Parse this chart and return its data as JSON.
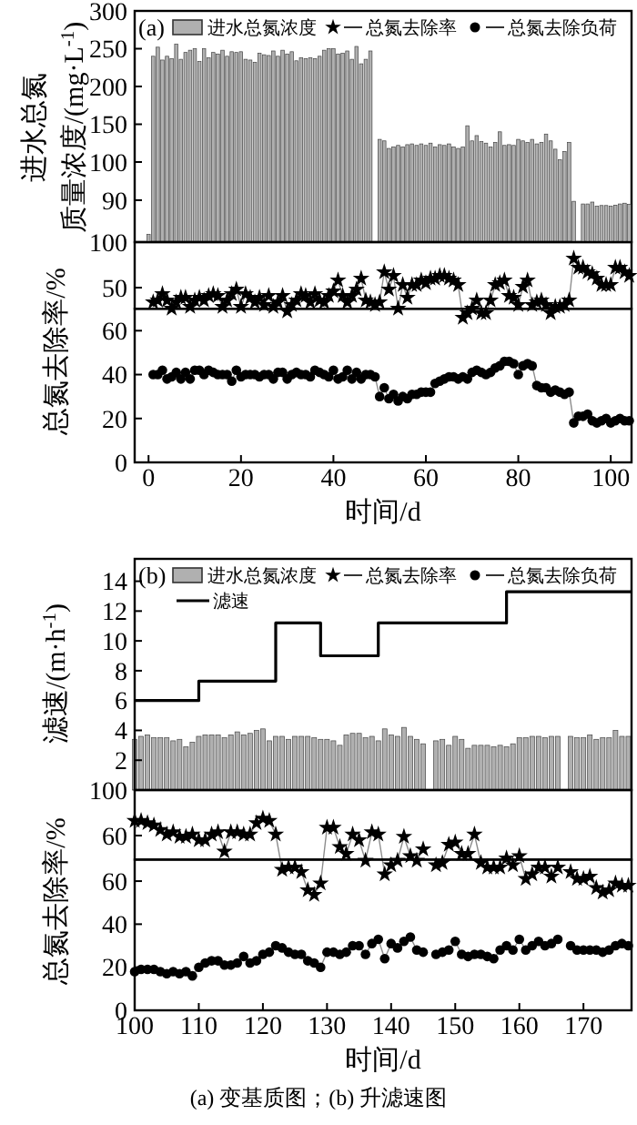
{
  "chart_data": [
    {
      "type": "bar",
      "annotations": [
        "(a)"
      ],
      "ylabel": "进水总氮质量浓度/(mg·L$^{-1}$)",
      "xlim": [
        -3,
        104.5
      ],
      "ylim": [
        -6,
        300
      ],
      "yticks": [
        {
          "value": 100,
          "label": null
        },
        150,
        200,
        250,
        300
      ],
      "tick_labels": "y",
      "legend": "top left",
      "x": [
        1,
        2,
        3,
        4,
        5,
        6,
        7,
        8,
        9,
        10,
        11,
        12,
        13,
        14,
        15,
        16,
        17,
        18,
        19,
        20,
        21,
        22,
        23,
        24,
        25,
        26,
        27,
        28,
        29,
        30,
        31,
        32,
        33,
        34,
        35,
        36,
        37,
        38,
        39,
        40,
        41,
        42,
        43,
        44,
        45,
        46,
        47,
        48,
        49,
        50,
        51,
        52,
        53,
        54,
        55,
        56,
        57,
        58,
        59,
        60,
        61,
        62,
        63,
        64,
        65,
        66,
        67,
        68,
        69,
        70,
        71,
        72,
        73,
        74,
        75,
        76,
        77,
        78,
        79,
        80,
        81,
        82,
        83,
        84,
        85,
        86,
        87,
        88,
        89,
        90,
        91
      ],
      "series": [
        {
          "name": "进水总氮浓度",
          "color": "#b0b0b0",
          "values": [
            240,
            252,
            235,
            240,
            237,
            256,
            236,
            245,
            248,
            250,
            233,
            250,
            238,
            245,
            243,
            248,
            240,
            246,
            245,
            246,
            236,
            235,
            232,
            244,
            242,
            241,
            247,
            240,
            248,
            243,
            246,
            234,
            238,
            237,
            238,
            237,
            240,
            248,
            250,
            250,
            243,
            244,
            247,
            236,
            253,
            230,
            236,
            247,
            null,
            130,
            128,
            118,
            120,
            122,
            120,
            123,
            124,
            122,
            124,
            122,
            125,
            120,
            123,
            122,
            124,
            120,
            118,
            120,
            148,
            128,
            135,
            127,
            125,
            120,
            126,
            140,
            122,
            123,
            122,
            130,
            128,
            126,
            130,
            124,
            126,
            137,
            128,
            117,
            103,
            114,
            126
          ]
        }
      ]
    },
    {
      "type": "bar",
      "xlim": [
        -3,
        104.5
      ],
      "ylim": [
        79,
        100
      ],
      "yticks": [
        90,
        100
      ],
      "tick_labels": "y",
      "x": [
        0,
        92,
        94,
        95,
        96,
        97,
        98,
        99,
        100,
        101,
        102,
        103,
        104
      ],
      "series": [
        {
          "color": "#b0b0b0",
          "values": [
            81,
            89.7,
            89,
            89,
            89.5,
            88.4,
            88.6,
            88.6,
            88.4,
            88.7,
            89,
            89.2,
            88.9
          ]
        }
      ]
    },
    {
      "type": "line",
      "xlim": [
        -3,
        104.5
      ],
      "ylim": [
        -142,
        100
      ],
      "yticks": [
        50,
        100
      ],
      "tick_labels": "y",
      "marker": "star",
      "legend": "top",
      "x": [
        1,
        2,
        3,
        4,
        5,
        6,
        7,
        8,
        9,
        10,
        11,
        12,
        13,
        14,
        15,
        16,
        17,
        18,
        19,
        20,
        21,
        22,
        23,
        24,
        25,
        26,
        27,
        28,
        29,
        30,
        31,
        32,
        33,
        34,
        35,
        36,
        37,
        38,
        39,
        40,
        41,
        42,
        43,
        44,
        45,
        46,
        47,
        48,
        49,
        50,
        51,
        52,
        53,
        54,
        55,
        56,
        57,
        58,
        59,
        60,
        61,
        62,
        63,
        64,
        65,
        66,
        67,
        68,
        69,
        70,
        71,
        72,
        73,
        74,
        75,
        76,
        77,
        78,
        79,
        80,
        81,
        82,
        83,
        84,
        85,
        86,
        87,
        88,
        89,
        90,
        91,
        92,
        93,
        94,
        95,
        96,
        97,
        98,
        99,
        100,
        101,
        102,
        103,
        104
      ],
      "series": [
        {
          "name": "总氮去除率",
          "color": "#000000",
          "values": [
            34,
            36,
            43,
            36,
            27,
            34,
            39,
            39,
            29,
            36,
            39,
            36,
            41,
            43,
            41,
            29,
            36,
            43,
            48,
            29,
            43,
            39,
            34,
            39,
            31,
            41,
            29,
            34,
            41,
            24,
            31,
            36,
            43,
            41,
            34,
            43,
            36,
            34,
            41,
            46,
            58,
            41,
            34,
            41,
            48,
            60,
            36,
            34,
            31,
            34,
            67,
            48,
            63,
            27,
            53,
            39,
            53,
            53,
            58,
            55,
            60,
            60,
            63,
            63,
            60,
            58,
            53,
            17,
            22,
            27,
            36,
            22,
            22,
            36,
            53,
            55,
            58,
            41,
            39,
            31,
            51,
            58,
            31,
            34,
            36,
            31,
            22,
            29,
            29,
            31,
            36,
            82,
            72,
            72,
            67,
            65,
            60,
            53,
            53,
            53,
            72,
            72,
            67,
            63
          ]
        }
      ]
    },
    {
      "type": "line",
      "xlabel": "时间/d",
      "ylabel": "总氮去除率/%",
      "xlim": [
        -3,
        104.5
      ],
      "xticks": [
        0,
        20,
        40,
        60,
        80,
        100
      ],
      "ylim": [
        0,
        70
      ],
      "yticks": [
        0,
        20,
        40,
        60
      ],
      "marker": "circle",
      "legend": "top",
      "x": [
        1,
        2,
        3,
        4,
        5,
        6,
        7,
        8,
        9,
        10,
        11,
        12,
        13,
        14,
        15,
        16,
        17,
        18,
        19,
        20,
        21,
        22,
        23,
        24,
        25,
        26,
        27,
        28,
        29,
        30,
        31,
        32,
        33,
        34,
        35,
        36,
        37,
        38,
        39,
        40,
        41,
        42,
        43,
        44,
        45,
        46,
        47,
        48,
        49,
        50,
        51,
        52,
        53,
        54,
        55,
        56,
        57,
        58,
        59,
        60,
        61,
        62,
        63,
        64,
        65,
        66,
        67,
        68,
        69,
        70,
        71,
        72,
        73,
        74,
        75,
        76,
        77,
        78,
        79,
        80,
        81,
        82,
        83,
        84,
        85,
        86,
        87,
        88,
        89,
        90,
        91,
        92,
        93,
        94,
        95,
        96,
        97,
        98,
        99,
        100,
        101,
        102,
        103,
        104
      ],
      "series": [
        {
          "name": "总氮去除负荷",
          "color": "#000000",
          "values": [
            40,
            40,
            42,
            38,
            39,
            41,
            38,
            41,
            38,
            42,
            42,
            40,
            42,
            41,
            40,
            40,
            40,
            37,
            42,
            39,
            40,
            40,
            40,
            39,
            40,
            40,
            38,
            41,
            41,
            38,
            40,
            41,
            40,
            40,
            39,
            42,
            41,
            40,
            39,
            42,
            38,
            39,
            42,
            38,
            41,
            38,
            40,
            40,
            39,
            30,
            34,
            29,
            31,
            28,
            30,
            29,
            31,
            31,
            32,
            32,
            32,
            36,
            37,
            38,
            39,
            39,
            38,
            39,
            38,
            41,
            42,
            41,
            40,
            41,
            43,
            44,
            46,
            46,
            45,
            40,
            44,
            45,
            44,
            35,
            34,
            34,
            32,
            33,
            32,
            31,
            32,
            18,
            21,
            21,
            22,
            19,
            18,
            19,
            20,
            18,
            19,
            20,
            19,
            19
          ]
        }
      ]
    },
    {
      "type": "bar",
      "annotations": [
        "(b)"
      ],
      "ylabel": "滤速/(m·h$^{-1}$)",
      "xlim": [
        100,
        177.5
      ],
      "ylim": [
        0,
        15.5
      ],
      "yticks": [
        2,
        4,
        6,
        8,
        10,
        12,
        14
      ],
      "tick_labels": "y",
      "legend": "top left",
      "x": [
        100,
        101,
        102,
        103,
        104,
        105,
        106,
        107,
        108,
        109,
        110,
        111,
        112,
        113,
        114,
        115,
        116,
        117,
        118,
        119,
        120,
        121,
        122,
        123,
        124,
        125,
        126,
        127,
        128,
        129,
        130,
        131,
        132,
        133,
        134,
        135,
        136,
        137,
        138,
        139,
        140,
        141,
        142,
        143,
        144,
        145,
        146,
        147,
        148,
        149,
        150,
        151,
        152,
        153,
        154,
        155,
        156,
        157,
        158,
        159,
        160,
        161,
        162,
        163,
        164,
        165,
        166,
        167,
        168,
        169,
        170,
        171,
        172,
        173,
        174,
        175,
        176,
        177
      ],
      "series": [
        {
          "name": "进水总氮浓度",
          "color": "#b0b0b0",
          "values": [
            3.4,
            3.6,
            3.7,
            3.5,
            3.5,
            3.5,
            3.3,
            3.4,
            2.9,
            3.2,
            3.6,
            3.7,
            3.7,
            3.7,
            3.5,
            3.7,
            3.9,
            3.7,
            3.8,
            4.0,
            4.1,
            3.3,
            3.6,
            3.6,
            3.4,
            3.6,
            3.6,
            3.6,
            3.5,
            3.4,
            3.4,
            3.3,
            3.0,
            3.7,
            3.8,
            3.8,
            3.5,
            3.6,
            3.3,
            4.1,
            3.7,
            3.6,
            4.2,
            3.6,
            3.4,
            3.1,
            null,
            3.3,
            3.4,
            3.0,
            3.6,
            3.4,
            2.8,
            3.0,
            3.0,
            3.0,
            2.9,
            3.0,
            2.9,
            3.1,
            3.5,
            3.5,
            3.6,
            3.6,
            3.5,
            3.6,
            3.6,
            null,
            3.6,
            3.5,
            3.5,
            3.7,
            3.4,
            3.5,
            3.5,
            4.0,
            3.6,
            3.6
          ]
        },
        {
          "name": "滤速",
          "type": "step",
          "color": "#000000",
          "x": [
            100,
            110,
            122,
            129,
            138,
            158,
            177.5
          ],
          "values": [
            6,
            7.3,
            11.2,
            9,
            11.2,
            13.3,
            13.3
          ]
        }
      ]
    },
    {
      "type": "line",
      "xlim": [
        100,
        177.5
      ],
      "ylim": [
        -93.6,
        100
      ],
      "yticks": [
        60,
        100
      ],
      "tick_labels": "y",
      "marker": "star",
      "legend": "top",
      "x": [
        100,
        101,
        102,
        103,
        104,
        105,
        106,
        107,
        108,
        109,
        110,
        111,
        112,
        113,
        114,
        115,
        116,
        117,
        118,
        119,
        120,
        121,
        122,
        123,
        124,
        125,
        126,
        127,
        128,
        129,
        130,
        131,
        132,
        133,
        134,
        135,
        136,
        137,
        138,
        139,
        140,
        141,
        142,
        143,
        144,
        145,
        146,
        147,
        148,
        149,
        150,
        151,
        152,
        153,
        154,
        155,
        156,
        157,
        158,
        159,
        160,
        161,
        162,
        163,
        164,
        165,
        166,
        167,
        168,
        169,
        170,
        171,
        172,
        173,
        174,
        175,
        176,
        177
      ],
      "series": [
        {
          "name": "总氮去除率",
          "color": "#000000",
          "values": [
            73,
            73,
            71,
            69,
            65,
            61,
            63,
            59,
            59,
            61,
            56,
            56,
            61,
            63,
            46,
            63,
            63,
            61,
            61,
            71,
            75,
            73,
            61,
            30,
            32,
            32,
            28,
            12,
            8,
            18,
            67,
            67,
            50,
            44,
            61,
            56,
            38,
            63,
            61,
            26,
            34,
            38,
            59,
            42,
            38,
            48,
            null,
            34,
            36,
            52,
            54,
            44,
            44,
            61,
            36,
            32,
            32,
            32,
            40,
            34,
            42,
            22,
            26,
            32,
            32,
            24,
            32,
            null,
            28,
            22,
            22,
            24,
            14,
            10,
            12,
            18,
            16,
            16
          ]
        }
      ]
    },
    {
      "type": "line",
      "annotations": [
        "(a) 变基质图；(b) 升滤速图"
      ],
      "xlabel": "时间/d",
      "ylabel": "总氮去除率/%",
      "xlim": [
        100,
        177.5
      ],
      "xticks": [
        100,
        110,
        120,
        130,
        140,
        150,
        160,
        170
      ],
      "ylim": [
        0,
        70
      ],
      "yticks": [
        0,
        20,
        40,
        60
      ],
      "marker": "circle",
      "legend": "top",
      "x": [
        100,
        101,
        102,
        103,
        104,
        105,
        106,
        107,
        108,
        109,
        110,
        111,
        112,
        113,
        114,
        115,
        116,
        117,
        118,
        119,
        120,
        121,
        122,
        123,
        124,
        125,
        126,
        127,
        128,
        129,
        130,
        131,
        132,
        133,
        134,
        135,
        136,
        137,
        138,
        139,
        140,
        141,
        142,
        143,
        144,
        145,
        146,
        147,
        148,
        149,
        150,
        151,
        152,
        153,
        154,
        155,
        156,
        157,
        158,
        159,
        160,
        161,
        162,
        163,
        164,
        165,
        166,
        167,
        168,
        169,
        170,
        171,
        172,
        173,
        174,
        175,
        176,
        177
      ],
      "series": [
        {
          "name": "总氮去除负荷",
          "color": "#000000",
          "values": [
            18,
            19,
            19,
            19,
            18,
            17,
            18,
            17,
            18,
            16,
            20,
            22,
            23,
            23,
            21,
            21,
            22,
            25,
            22,
            23,
            26,
            27,
            30,
            29,
            27,
            26,
            26,
            23,
            22,
            20,
            27,
            27,
            26,
            27,
            30,
            30,
            26,
            31,
            33,
            24,
            31,
            29,
            32,
            34,
            28,
            27,
            null,
            26,
            27,
            28,
            32,
            26,
            25,
            26,
            26,
            25,
            24,
            28,
            30,
            28,
            33,
            28,
            30,
            32,
            30,
            31,
            33,
            null,
            30,
            28,
            28,
            28,
            28,
            27,
            28,
            30,
            31,
            30
          ]
        }
      ]
    }
  ]
}
